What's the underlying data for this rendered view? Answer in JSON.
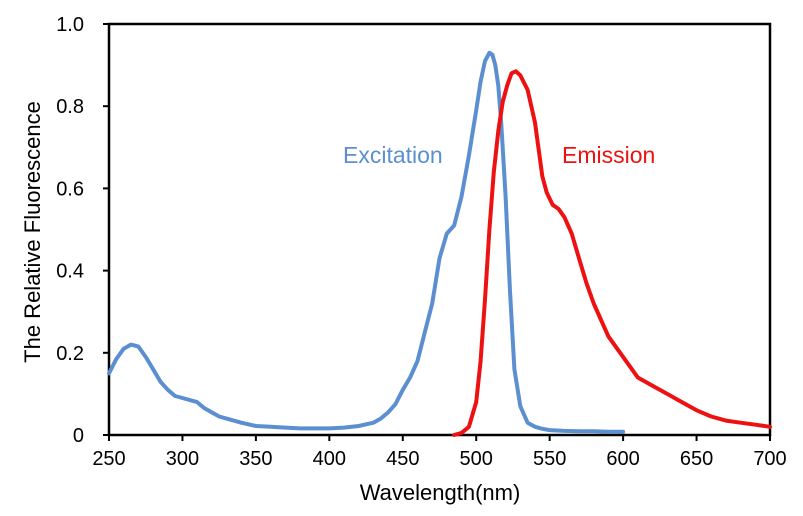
{
  "chart_data": {
    "type": "line",
    "title": "",
    "xlabel": "Wavelength(nm)",
    "ylabel": "The Relative Fluorescence",
    "xlim": [
      250,
      700
    ],
    "ylim": [
      0,
      1.0
    ],
    "xticks": [
      250,
      300,
      350,
      400,
      450,
      500,
      550,
      600,
      650,
      700
    ],
    "yticks": [
      0,
      0.2,
      0.4,
      0.6,
      0.8,
      1.0
    ],
    "ytick_labels": [
      "0",
      "0.2",
      "0.4",
      "0.6",
      "0.8",
      "1.0"
    ],
    "grid": false,
    "series": [
      {
        "name": "Excitation",
        "color": "#5b8fd0",
        "x": [
          250,
          255,
          260,
          265,
          270,
          275,
          280,
          285,
          290,
          295,
          300,
          305,
          310,
          315,
          320,
          325,
          330,
          340,
          350,
          360,
          370,
          380,
          390,
          400,
          410,
          420,
          430,
          435,
          440,
          445,
          450,
          455,
          460,
          465,
          470,
          475,
          480,
          485,
          490,
          495,
          500,
          503,
          506,
          509,
          511,
          513,
          515,
          517,
          520,
          523,
          526,
          530,
          535,
          540,
          545,
          550,
          560,
          570,
          580,
          590,
          600
        ],
        "y": [
          0.15,
          0.185,
          0.21,
          0.22,
          0.215,
          0.19,
          0.16,
          0.13,
          0.11,
          0.095,
          0.09,
          0.085,
          0.08,
          0.065,
          0.055,
          0.045,
          0.04,
          0.03,
          0.022,
          0.02,
          0.018,
          0.016,
          0.016,
          0.016,
          0.018,
          0.022,
          0.03,
          0.04,
          0.055,
          0.075,
          0.11,
          0.14,
          0.18,
          0.25,
          0.32,
          0.43,
          0.49,
          0.51,
          0.58,
          0.68,
          0.79,
          0.86,
          0.91,
          0.93,
          0.925,
          0.9,
          0.85,
          0.76,
          0.58,
          0.35,
          0.16,
          0.07,
          0.03,
          0.02,
          0.015,
          0.012,
          0.01,
          0.009,
          0.009,
          0.008,
          0.008
        ]
      },
      {
        "name": "Emission",
        "color": "#ee1111",
        "x": [
          485,
          490,
          495,
          500,
          503,
          506,
          509,
          512,
          515,
          518,
          521,
          524,
          527,
          530,
          535,
          540,
          545,
          548,
          552,
          556,
          560,
          565,
          570,
          575,
          580,
          590,
          600,
          610,
          620,
          630,
          640,
          650,
          660,
          670,
          680,
          690,
          700
        ],
        "y": [
          0.0,
          0.005,
          0.02,
          0.08,
          0.18,
          0.33,
          0.5,
          0.64,
          0.74,
          0.81,
          0.85,
          0.88,
          0.885,
          0.875,
          0.84,
          0.76,
          0.63,
          0.59,
          0.56,
          0.55,
          0.53,
          0.49,
          0.43,
          0.37,
          0.32,
          0.24,
          0.19,
          0.14,
          0.12,
          0.1,
          0.08,
          0.06,
          0.045,
          0.035,
          0.03,
          0.025,
          0.02
        ]
      }
    ],
    "annotations": [
      "Excitation",
      "Emission"
    ]
  }
}
